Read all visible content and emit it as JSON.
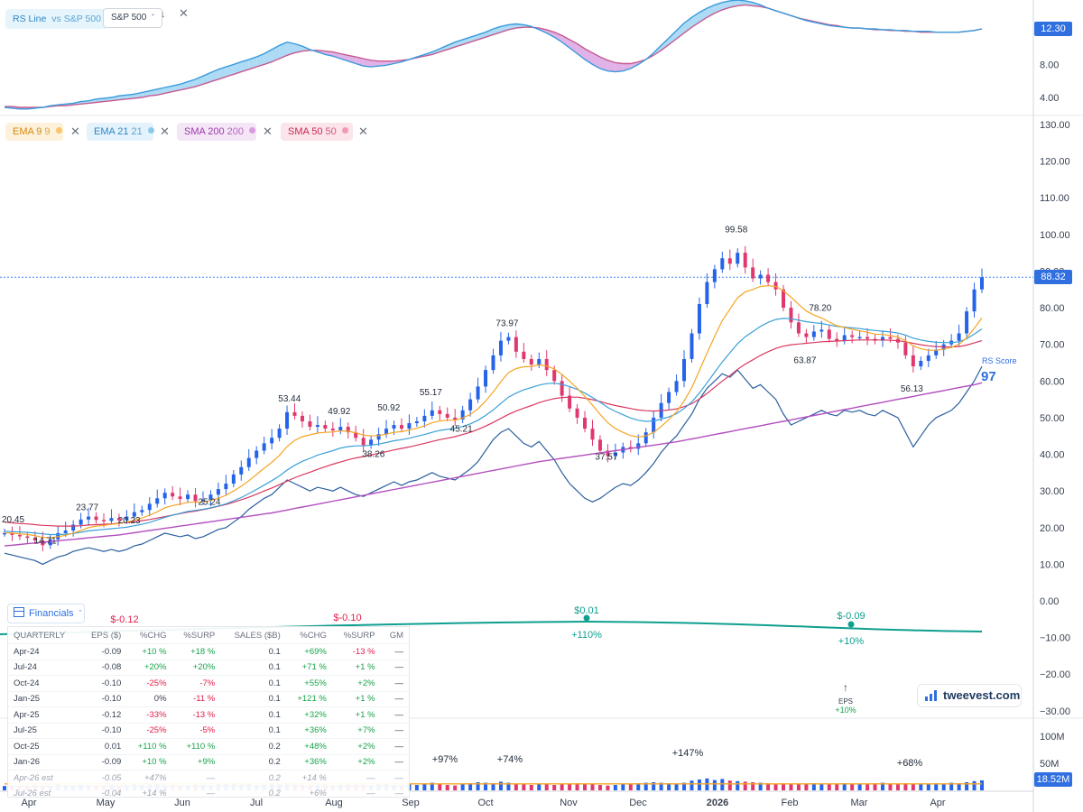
{
  "rs_panel": {
    "indicator_label": "RS Line",
    "vs_label": "vs S&P 500",
    "benchmark_select": "S&P 500",
    "value_tag": "12.30",
    "axis_ticks": [
      "8.00",
      "4.00"
    ]
  },
  "ma_chips": [
    {
      "label": "EMA 9",
      "param": "9",
      "color": "#f5a524"
    },
    {
      "label": "EMA 21",
      "param": "21",
      "color": "#3aa0d8"
    },
    {
      "label": "SMA 200",
      "param": "200",
      "color": "#b34fbf"
    },
    {
      "label": "SMA 50",
      "param": "50",
      "color": "#d9395f"
    }
  ],
  "price_tag": "88.32",
  "price_axis_ticks": [
    "130.00",
    "120.00",
    "110.00",
    "100.00",
    "90.00",
    "80.00",
    "70.00",
    "60.00",
    "50.00",
    "40.00",
    "30.00",
    "20.00",
    "10.00",
    "0.00",
    "−10.00",
    "−20.00",
    "−30.00"
  ],
  "rs_score": {
    "label": "RS Score",
    "value": "97"
  },
  "eps_markers": [
    {
      "label": "$-0.12",
      "pct": "",
      "color": "#e11d48"
    },
    {
      "label": "$-0.10",
      "pct": "",
      "color": "#e11d48"
    },
    {
      "label": "$0.01",
      "pct": "+110%",
      "color": "#0f9f8f"
    },
    {
      "label": "$-0.09",
      "pct": "+10%",
      "color": "#0f9f8f"
    }
  ],
  "eps_note": {
    "label": "EPS",
    "pct": "+10%"
  },
  "volume": {
    "axis_ticks": [
      "100M",
      "50M"
    ],
    "value_tag": "18.52M",
    "pct_labels": [
      "+97%",
      "+74%",
      "+147%",
      "+68%"
    ]
  },
  "x_axis_labels": [
    "Apr",
    "May",
    "Jun",
    "Jul",
    "Aug",
    "Sep",
    "Oct",
    "Nov",
    "Dec",
    "2026",
    "Feb",
    "Mar",
    "Apr"
  ],
  "financials": {
    "button_label": "Financials",
    "headers": [
      "QUARTERLY",
      "EPS ($)",
      "%CHG",
      "%SURP",
      "SALES ($B)",
      "%CHG",
      "%SURP",
      "GM"
    ],
    "rows": [
      [
        "Apr-24",
        "-0.09",
        "+10 %",
        "+18 %",
        "0.1",
        "+69%",
        "-13 %",
        "—"
      ],
      [
        "Jul-24",
        "-0.08",
        "+20%",
        "+20%",
        "0.1",
        "+71 %",
        "+1 %",
        "—"
      ],
      [
        "Oct-24",
        "-0.10",
        "-25%",
        "-7%",
        "0.1",
        "+55%",
        "+2%",
        "—"
      ],
      [
        "Jan-25",
        "-0.10",
        "0%",
        "-11 %",
        "0.1",
        "+121 %",
        "+1 %",
        "—"
      ],
      [
        "Apr-25",
        "-0.12",
        "-33%",
        "-13 %",
        "0.1",
        "+32%",
        "+1 %",
        "—"
      ],
      [
        "Jul-25",
        "-0.10",
        "-25%",
        "-5%",
        "0.1",
        "+36%",
        "+7%",
        "—"
      ],
      [
        "Oct-25",
        "0.01",
        "+110 %",
        "+110 %",
        "0.2",
        "+48%",
        "+2%",
        "—"
      ],
      [
        "Jan-26",
        "-0.09",
        "+10 %",
        "+9%",
        "0.2",
        "+36%",
        "+2%",
        "—"
      ],
      [
        "Apr-26 est",
        "-0.05",
        "+47%",
        "—",
        "0.2",
        "+14 %",
        "—",
        "—"
      ],
      [
        "Jul-26 est",
        "-0.04",
        "+14 %",
        "—",
        "0.2",
        "+6%",
        "—",
        "—"
      ]
    ]
  },
  "logo_text": "tweevest.com",
  "chart_data": {
    "type": "line",
    "x_labels": [
      "Apr",
      "May",
      "Jun",
      "Jul",
      "Aug",
      "Sep",
      "Oct",
      "Nov",
      "Dec",
      "2026",
      "Feb",
      "Mar",
      "Apr"
    ],
    "yrange": [
      -30,
      130
    ],
    "last_price": 88.32,
    "price_labels": [
      {
        "t": 0.5,
        "v": 20.45,
        "text": "20.45"
      },
      {
        "t": 5.5,
        "v": 14.71,
        "text": "14.71"
      },
      {
        "t": 11,
        "v": 23.77,
        "text": "23.77"
      },
      {
        "t": 16.5,
        "v": 20.23,
        "text": "20.23"
      },
      {
        "t": 27,
        "v": 25.24,
        "text": "25.24"
      },
      {
        "t": 37.5,
        "v": 53.44,
        "text": "53.44"
      },
      {
        "t": 44,
        "v": 49.92,
        "text": "49.92"
      },
      {
        "t": 48.5,
        "v": 38.26,
        "text": "38.26"
      },
      {
        "t": 50.5,
        "v": 50.92,
        "text": "50.92"
      },
      {
        "t": 56,
        "v": 55.17,
        "text": "55.17"
      },
      {
        "t": 60,
        "v": 45.21,
        "text": "45.21"
      },
      {
        "t": 66,
        "v": 73.97,
        "text": "73.97"
      },
      {
        "t": 79,
        "v": 37.57,
        "text": "37.57"
      },
      {
        "t": 96,
        "v": 99.58,
        "text": "99.58"
      },
      {
        "t": 105,
        "v": 63.87,
        "text": "63.87"
      },
      {
        "t": 107,
        "v": 78.2,
        "text": "78.20"
      },
      {
        "t": 119,
        "v": 56.13,
        "text": "56.13"
      }
    ],
    "close": [
      18.5,
      18.0,
      17.6,
      17.2,
      16.5,
      15.2,
      16.8,
      18.5,
      19.2,
      20.8,
      22.2,
      23.0,
      22.1,
      21.8,
      22.6,
      22.0,
      23.0,
      24.2,
      24.8,
      26.5,
      28.0,
      29.5,
      28.5,
      27.8,
      29.0,
      27.2,
      27.5,
      29.0,
      30.5,
      32.0,
      34.5,
      36.5,
      39.0,
      41.0,
      43.0,
      44.5,
      47.0,
      51.5,
      50.5,
      49.0,
      47.5,
      48.0,
      47.0,
      46.5,
      47.5,
      46.0,
      44.5,
      42.5,
      44.0,
      45.5,
      47.0,
      48.0,
      47.0,
      48.5,
      49.0,
      50.5,
      52.0,
      51.0,
      50.0,
      49.5,
      52.0,
      55.0,
      58.5,
      63.0,
      67.0,
      71.0,
      72.0,
      68.0,
      66.0,
      64.5,
      66.0,
      63.0,
      60.0,
      56.0,
      52.5,
      50.0,
      47.0,
      44.0,
      41.0,
      39.5,
      40.5,
      42.0,
      41.5,
      43.0,
      46.0,
      50.0,
      54.0,
      57.0,
      60.0,
      66.0,
      73.0,
      81.0,
      87.0,
      90.5,
      93.5,
      92.0,
      95.0,
      91.0,
      88.0,
      89.0,
      87.0,
      85.0,
      80.0,
      76.0,
      73.0,
      72.0,
      73.5,
      74.0,
      71.5,
      71.0,
      72.5,
      72.0,
      72.0,
      71.5,
      71.0,
      72.0,
      71.5,
      70.5,
      67.0,
      64.0,
      65.5,
      67.0,
      68.5,
      70.0,
      71.0,
      73.0,
      79.0,
      85.0,
      88.32
    ],
    "ema9": [
      18.6,
      18.5,
      18.3,
      18.1,
      17.8,
      17.3,
      17.2,
      17.5,
      17.9,
      18.5,
      19.2,
      20.0,
      20.4,
      20.6,
      20.9,
      21.1,
      21.5,
      22.0,
      22.6,
      23.4,
      24.3,
      25.4,
      26.0,
      26.4,
      26.9,
      26.9,
      27.0,
      27.4,
      28.0,
      28.8,
      30.0,
      31.3,
      32.8,
      34.5,
      36.2,
      37.8,
      39.7,
      42.1,
      43.8,
      44.8,
      45.3,
      45.8,
      46.0,
      46.1,
      46.4,
      46.3,
      45.9,
      45.2,
      45.0,
      45.1,
      45.5,
      46.0,
      46.2,
      46.6,
      47.1,
      47.8,
      48.6,
      49.1,
      49.3,
      49.3,
      49.9,
      50.9,
      52.4,
      54.5,
      57.0,
      59.8,
      62.3,
      63.4,
      63.9,
      64.0,
      64.4,
      64.1,
      63.3,
      61.8,
      60.0,
      58.0,
      55.8,
      53.4,
      50.9,
      48.6,
      47.0,
      46.0,
      45.1,
      44.7,
      45.0,
      46.0,
      47.6,
      49.5,
      51.6,
      54.5,
      58.2,
      62.8,
      67.6,
      72.2,
      76.5,
      79.6,
      82.7,
      84.3,
      85.0,
      85.8,
      86.0,
      85.8,
      84.6,
      82.9,
      80.9,
      79.1,
      78.0,
      77.2,
      76.1,
      75.1,
      74.6,
      74.1,
      73.7,
      73.3,
      72.8,
      72.7,
      72.4,
      72.0,
      71.0,
      69.6,
      68.8,
      68.4,
      68.4,
      68.7,
      69.2,
      70.0,
      71.8,
      74.4,
      77.2
    ],
    "ema21": [
      19.0,
      18.9,
      18.8,
      18.7,
      18.5,
      18.3,
      18.1,
      18.1,
      18.2,
      18.4,
      18.7,
      19.1,
      19.3,
      19.5,
      19.7,
      19.9,
      20.1,
      20.5,
      20.9,
      21.4,
      22.1,
      22.8,
      23.4,
      23.9,
      24.4,
      24.7,
      25.0,
      25.4,
      25.9,
      26.5,
      27.3,
      28.2,
      29.3,
      30.4,
      31.6,
      32.8,
      34.1,
      35.7,
      37.0,
      38.1,
      38.9,
      39.8,
      40.4,
      41.0,
      41.7,
      42.1,
      42.3,
      42.3,
      42.5,
      42.8,
      43.2,
      43.7,
      44.0,
      44.4,
      44.9,
      45.4,
      46.0,
      46.5,
      46.8,
      47.1,
      47.6,
      48.3,
      49.3,
      50.6,
      52.1,
      53.9,
      55.6,
      56.7,
      57.6,
      58.2,
      58.9,
      59.3,
      59.4,
      59.1,
      58.5,
      57.7,
      56.7,
      55.5,
      54.2,
      52.8,
      51.7,
      50.8,
      49.9,
      49.3,
      49.0,
      49.1,
      49.6,
      50.2,
      51.1,
      52.5,
      54.3,
      56.7,
      59.5,
      62.4,
      65.2,
      67.7,
      70.2,
      72.1,
      73.5,
      74.9,
      76.0,
      76.8,
      77.1,
      77.0,
      76.6,
      76.2,
      75.9,
      75.7,
      75.3,
      74.9,
      74.7,
      74.5,
      74.3,
      74.0,
      73.8,
      73.6,
      73.4,
      73.1,
      72.5,
      71.7,
      71.2,
      70.8,
      70.6,
      70.5,
      70.5,
      70.7,
      71.5,
      72.8,
      74.2
    ],
    "sma50": [
      21.5,
      21.3,
      21.1,
      21.0,
      20.8,
      20.6,
      20.5,
      20.4,
      20.4,
      20.4,
      20.5,
      20.7,
      20.8,
      20.9,
      21.0,
      21.2,
      21.4,
      21.6,
      21.9,
      22.2,
      22.6,
      23.0,
      23.4,
      23.8,
      24.2,
      24.5,
      24.9,
      25.3,
      25.8,
      26.3,
      26.9,
      27.6,
      28.3,
      29.1,
      30.0,
      30.8,
      31.7,
      32.7,
      33.6,
      34.4,
      35.1,
      35.9,
      36.6,
      37.3,
      37.9,
      38.5,
      39.0,
      39.4,
      39.8,
      40.3,
      40.7,
      41.2,
      41.6,
      42.0,
      42.5,
      43.0,
      43.5,
      44.0,
      44.4,
      44.8,
      45.4,
      46.0,
      46.8,
      47.7,
      48.7,
      49.8,
      50.9,
      51.8,
      52.6,
      53.3,
      54.1,
      54.7,
      55.2,
      55.5,
      55.6,
      55.6,
      55.3,
      54.9,
      54.4,
      53.8,
      53.3,
      52.9,
      52.5,
      52.1,
      51.9,
      51.8,
      51.9,
      52.1,
      52.4,
      53.0,
      53.8,
      55.1,
      56.6,
      58.3,
      60.0,
      61.5,
      63.2,
      64.6,
      65.8,
      67.0,
      68.0,
      68.9,
      69.5,
      69.9,
      70.1,
      70.3,
      70.5,
      70.7,
      70.8,
      70.9,
      71.0,
      71.1,
      71.2,
      71.2,
      71.2,
      71.2,
      71.1,
      71.0,
      70.7,
      70.3,
      69.9,
      69.6,
      69.4,
      69.3,
      69.3,
      69.4,
      69.8,
      70.4,
      71.0
    ],
    "sma200": [
      15.0,
      15.2,
      15.4,
      15.6,
      15.8,
      16.0,
      16.2,
      16.4,
      16.6,
      16.8,
      17.0,
      17.2,
      17.4,
      17.6,
      17.8,
      18.0,
      18.3,
      18.6,
      18.9,
      19.2,
      19.5,
      19.8,
      20.1,
      20.4,
      20.7,
      21.0,
      21.3,
      21.6,
      21.9,
      22.2,
      22.5,
      22.8,
      23.1,
      23.4,
      23.7,
      24.0,
      24.4,
      24.8,
      25.2,
      25.6,
      26.0,
      26.4,
      26.8,
      27.2,
      27.6,
      28.0,
      28.4,
      28.8,
      29.2,
      29.6,
      30.0,
      30.4,
      30.8,
      31.2,
      31.6,
      32.0,
      32.4,
      32.8,
      33.2,
      33.6,
      34.0,
      34.4,
      34.8,
      35.2,
      35.6,
      36.0,
      36.4,
      36.8,
      37.2,
      37.6,
      38.0,
      38.3,
      38.6,
      38.9,
      39.2,
      39.5,
      39.8,
      40.1,
      40.4,
      40.7,
      41.0,
      41.3,
      41.6,
      41.9,
      42.2,
      42.5,
      42.8,
      43.1,
      43.4,
      43.8,
      44.2,
      44.6,
      45.0,
      45.4,
      45.8,
      46.2,
      46.6,
      47.0,
      47.4,
      47.8,
      48.2,
      48.6,
      49.0,
      49.4,
      49.8,
      50.2,
      50.6,
      51.0,
      51.4,
      51.8,
      52.2,
      52.6,
      53.0,
      53.4,
      53.8,
      54.2,
      54.6,
      55.0,
      55.4,
      55.8,
      56.2,
      56.6,
      57.0,
      57.4,
      57.8,
      58.2,
      58.6,
      59.0,
      59.5
    ],
    "rs_line_overlay": [
      13.0,
      12.5,
      12.0,
      11.5,
      11.0,
      10.0,
      11.0,
      12.0,
      12.5,
      13.5,
      14.0,
      14.5,
      14.0,
      13.5,
      14.0,
      13.5,
      14.0,
      15.0,
      15.5,
      16.5,
      17.5,
      18.5,
      18.0,
      17.5,
      18.0,
      17.0,
      17.5,
      18.5,
      19.5,
      20.0,
      21.5,
      23.0,
      25.0,
      26.5,
      28.0,
      29.0,
      31.0,
      33.0,
      32.0,
      31.0,
      30.0,
      31.0,
      30.5,
      30.0,
      31.0,
      30.0,
      29.0,
      28.5,
      29.5,
      30.5,
      31.5,
      32.5,
      31.5,
      32.5,
      33.0,
      34.0,
      35.0,
      34.0,
      33.5,
      33.0,
      34.5,
      36.0,
      38.0,
      41.0,
      44.0,
      46.0,
      47.0,
      45.0,
      43.0,
      42.0,
      43.5,
      41.0,
      38.5,
      35.0,
      32.0,
      30.0,
      28.0,
      27.0,
      28.0,
      29.5,
      31.0,
      32.0,
      31.5,
      33.0,
      35.0,
      37.5,
      40.5,
      43.0,
      45.0,
      48.0,
      51.0,
      55.0,
      58.0,
      60.0,
      62.0,
      61.0,
      63.0,
      60.5,
      58.0,
      59.0,
      57.0,
      55.0,
      51.0,
      48.0,
      49.0,
      50.0,
      51.0,
      52.0,
      51.0,
      50.5,
      52.0,
      51.5,
      52.0,
      51.0,
      50.5,
      52.0,
      51.0,
      50.0,
      46.0,
      42.0,
      45.0,
      48.0,
      50.0,
      51.0,
      52.0,
      54.0,
      57.0,
      60.0,
      64.0
    ],
    "rs_panel_line": [
      2.8,
      2.7,
      2.6,
      2.6,
      2.7,
      2.8,
      3.0,
      3.1,
      3.2,
      3.3,
      3.5,
      3.6,
      3.8,
      3.9,
      4.0,
      4.2,
      4.3,
      4.4,
      4.6,
      4.8,
      5.0,
      5.2,
      5.4,
      5.6,
      5.9,
      6.2,
      6.6,
      7.0,
      7.4,
      7.7,
      8.0,
      8.3,
      8.6,
      8.9,
      9.3,
      9.8,
      10.3,
      10.7,
      10.5,
      10.2,
      9.8,
      9.5,
      9.2,
      9.0,
      8.7,
      8.4,
      8.1,
      7.8,
      7.7,
      7.8,
      7.9,
      8.1,
      8.3,
      8.6,
      8.9,
      9.2,
      9.5,
      9.9,
      10.3,
      10.7,
      11.0,
      11.3,
      11.6,
      11.9,
      12.3,
      12.6,
      12.8,
      12.9,
      12.8,
      12.6,
      12.2,
      11.8,
      11.3,
      10.7,
      10.0,
      9.3,
      8.6,
      8.0,
      7.5,
      7.2,
      7.1,
      7.2,
      7.5,
      8.0,
      8.6,
      9.4,
      10.3,
      11.2,
      12.1,
      13.0,
      13.7,
      14.3,
      14.8,
      15.2,
      15.5,
      15.7,
      15.8,
      15.7,
      15.5,
      15.2,
      14.8,
      14.5,
      14.2,
      13.9,
      13.6,
      13.3,
      13.1,
      12.9,
      12.7,
      12.6,
      12.5,
      12.4,
      12.4,
      12.3,
      12.3,
      12.2,
      12.2,
      12.1,
      12.1,
      12.0,
      12.0,
      12.0,
      11.9,
      11.9,
      11.9,
      11.9,
      12.0,
      12.1,
      12.3
    ],
    "rs_panel_ma": [
      2.9,
      2.9,
      2.8,
      2.8,
      2.8,
      2.8,
      2.9,
      3.0,
      3.0,
      3.1,
      3.2,
      3.3,
      3.4,
      3.5,
      3.6,
      3.7,
      3.8,
      3.9,
      4.0,
      4.2,
      4.3,
      4.5,
      4.7,
      4.9,
      5.1,
      5.3,
      5.6,
      5.9,
      6.2,
      6.5,
      6.8,
      7.1,
      7.4,
      7.7,
      8.0,
      8.3,
      8.7,
      9.1,
      9.4,
      9.6,
      9.7,
      9.7,
      9.6,
      9.5,
      9.3,
      9.1,
      8.9,
      8.7,
      8.5,
      8.4,
      8.4,
      8.4,
      8.5,
      8.6,
      8.8,
      9.0,
      9.2,
      9.5,
      9.8,
      10.1,
      10.4,
      10.7,
      11.0,
      11.3,
      11.6,
      11.9,
      12.2,
      12.4,
      12.5,
      12.5,
      12.4,
      12.2,
      11.9,
      11.5,
      11.0,
      10.5,
      9.9,
      9.4,
      8.9,
      8.5,
      8.2,
      8.1,
      8.1,
      8.3,
      8.6,
      9.1,
      9.7,
      10.4,
      11.1,
      11.8,
      12.5,
      13.1,
      13.7,
      14.2,
      14.6,
      14.9,
      15.1,
      15.2,
      15.1,
      15.0,
      14.8,
      14.5,
      14.2,
      13.9,
      13.6,
      13.4,
      13.2,
      13.0,
      12.8,
      12.7,
      12.5,
      12.4,
      12.4,
      12.3,
      12.2,
      12.2,
      12.1,
      12.1,
      12.0,
      12.0,
      11.9,
      11.9,
      11.9,
      11.9,
      11.9,
      11.9,
      12.0,
      12.1,
      12.3
    ],
    "volume_m": [
      8,
      7,
      9,
      8,
      10,
      9,
      8,
      11,
      9,
      8,
      10,
      9,
      8,
      9,
      10,
      8,
      9,
      11,
      10,
      12,
      11,
      9,
      10,
      8,
      9,
      11,
      10,
      9,
      12,
      11,
      13,
      12,
      11,
      10,
      12,
      13,
      12,
      14,
      11,
      10,
      9,
      10,
      11,
      9,
      10,
      12,
      11,
      10,
      9,
      11,
      12,
      10,
      9,
      11,
      10,
      12,
      14,
      11,
      10,
      9,
      12,
      13,
      15,
      14,
      13,
      16,
      14,
      12,
      11,
      10,
      12,
      11,
      10,
      12,
      11,
      13,
      12,
      11,
      10,
      9,
      10,
      11,
      12,
      13,
      14,
      15,
      14,
      13,
      12,
      14,
      18,
      20,
      22,
      19,
      21,
      18,
      17,
      16,
      15,
      14,
      13,
      12,
      13,
      12,
      11,
      12,
      13,
      12,
      11,
      12,
      13,
      12,
      11,
      12,
      13,
      14,
      12,
      11,
      13,
      12,
      11,
      12,
      13,
      12,
      14,
      13,
      15,
      17,
      18.52
    ],
    "volume_avg_m": 12
  }
}
